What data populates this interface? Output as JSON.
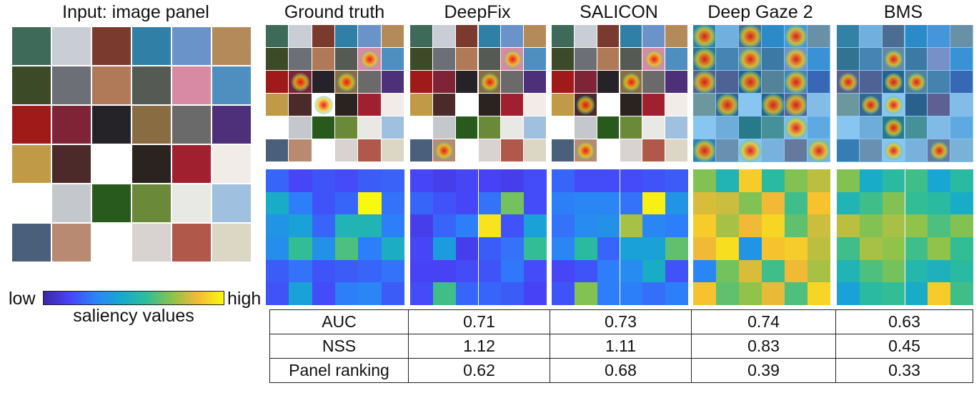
{
  "input_panel": {
    "title": "Input: image panel",
    "image_palette": [
      [
        "#3e6a5a",
        "#c9ced6",
        "#7a3a2e",
        "#2f7fa6",
        "#6a93c9",
        "#b58a5a"
      ],
      [
        "#3c4a28",
        "#6c6f75",
        "#b07a58",
        "#555a55",
        "#d88aa4",
        "#4f8fc0"
      ],
      [
        "#a11a1a",
        "#7e2436",
        "#252328",
        "#8a6c42",
        "#6a6a6a",
        "#4d2f7a"
      ],
      [
        "#c19a48",
        "#4d2a2a",
        "#ffffff",
        "#2b2320",
        "#a02030",
        "#f2ece8"
      ],
      [
        "#ffffff",
        "#c4c8cc",
        "#285a1e",
        "#6a8a3a",
        "#e8e8e4",
        "#9fc0de"
      ],
      [
        "#4a607a",
        "#b88a72",
        "#ffffff",
        "#d8d2d0",
        "#b0584a",
        "#dcd6c4"
      ]
    ]
  },
  "columns": [
    {
      "title": "Ground truth"
    },
    {
      "title": "DeepFix"
    },
    {
      "title": "SALICON"
    },
    {
      "title": "Deep Gaze 2"
    },
    {
      "title": "BMS"
    }
  ],
  "colorbar": {
    "low_label": "low",
    "high_label": "high",
    "caption": "saliency values",
    "colormap": [
      "#3e26a8",
      "#4743f8",
      "#2c82f9",
      "#16a9cf",
      "#2dbd9a",
      "#8bc34a",
      "#f5b935",
      "#f9f90f"
    ]
  },
  "saliency_grids": [
    {
      "method": "Ground truth",
      "values": [
        [
          0.22,
          0.15,
          0.18,
          0.16,
          0.2,
          0.21
        ],
        [
          0.45,
          0.28,
          0.18,
          0.22,
          1.0,
          0.25
        ],
        [
          0.35,
          0.4,
          0.22,
          0.5,
          0.5,
          0.28
        ],
        [
          0.33,
          0.58,
          0.34,
          0.62,
          0.28,
          0.46
        ],
        [
          0.2,
          0.25,
          0.18,
          0.2,
          0.22,
          0.25
        ],
        [
          0.18,
          0.4,
          0.16,
          0.28,
          0.3,
          0.2
        ]
      ]
    },
    {
      "method": "DeepFix",
      "values": [
        [
          0.15,
          0.12,
          0.15,
          0.14,
          0.12,
          0.16
        ],
        [
          0.22,
          0.18,
          0.15,
          0.25,
          0.68,
          0.16
        ],
        [
          0.12,
          0.22,
          0.28,
          0.95,
          0.18,
          0.4
        ],
        [
          0.15,
          0.38,
          0.12,
          0.2,
          0.25,
          0.58
        ],
        [
          0.14,
          0.14,
          0.16,
          0.18,
          0.26,
          0.16
        ],
        [
          0.16,
          0.6,
          0.22,
          0.22,
          0.2,
          0.14
        ]
      ]
    },
    {
      "method": "SALICON",
      "values": [
        [
          0.22,
          0.16,
          0.16,
          0.16,
          0.18,
          0.2
        ],
        [
          0.28,
          0.3,
          0.3,
          0.25,
          0.98,
          0.35
        ],
        [
          0.25,
          0.32,
          0.34,
          0.75,
          0.3,
          0.28
        ],
        [
          0.3,
          0.55,
          0.22,
          0.4,
          0.4,
          0.65
        ],
        [
          0.15,
          0.18,
          0.28,
          0.32,
          0.45,
          0.18
        ],
        [
          0.18,
          0.7,
          0.28,
          0.28,
          0.24,
          0.28
        ]
      ]
    },
    {
      "method": "Deep Gaze 2",
      "values": [
        [
          0.7,
          0.5,
          0.9,
          0.55,
          0.7,
          0.78
        ],
        [
          0.82,
          0.8,
          0.7,
          0.85,
          0.6,
          0.88
        ],
        [
          0.9,
          0.75,
          0.85,
          0.92,
          0.65,
          0.8
        ],
        [
          0.85,
          0.94,
          0.35,
          0.88,
          0.9,
          0.78
        ],
        [
          0.3,
          0.68,
          0.82,
          0.6,
          0.85,
          0.75
        ],
        [
          0.88,
          0.65,
          0.72,
          0.84,
          0.62,
          0.92
        ]
      ]
    },
    {
      "method": "BMS",
      "values": [
        [
          0.7,
          0.45,
          0.55,
          0.6,
          0.42,
          0.55
        ],
        [
          0.5,
          0.6,
          0.7,
          0.58,
          0.55,
          0.45
        ],
        [
          0.78,
          0.7,
          0.75,
          0.72,
          0.62,
          0.7
        ],
        [
          0.6,
          0.75,
          0.72,
          0.6,
          0.72,
          0.58
        ],
        [
          0.5,
          0.62,
          0.68,
          0.52,
          0.48,
          0.55
        ],
        [
          0.4,
          0.55,
          0.58,
          0.45,
          0.9,
          0.6
        ]
      ]
    }
  ],
  "overlay_hotspots": [
    [
      [
        1,
        4
      ],
      [
        2,
        1
      ],
      [
        3,
        2
      ],
      [
        2,
        3
      ]
    ],
    [
      [
        2,
        3
      ],
      [
        1,
        4
      ],
      [
        5,
        1
      ]
    ],
    [
      [
        1,
        4
      ],
      [
        2,
        3
      ],
      [
        3,
        1
      ],
      [
        5,
        1
      ]
    ],
    [
      [
        0,
        0
      ],
      [
        0,
        2
      ],
      [
        0,
        4
      ],
      [
        1,
        0
      ],
      [
        1,
        2
      ],
      [
        1,
        4
      ],
      [
        2,
        0
      ],
      [
        2,
        2
      ],
      [
        2,
        4
      ],
      [
        3,
        1
      ],
      [
        3,
        3
      ],
      [
        3,
        4
      ],
      [
        4,
        4
      ],
      [
        5,
        0
      ],
      [
        5,
        2
      ],
      [
        5,
        5
      ]
    ],
    [
      [
        1,
        2
      ],
      [
        2,
        0
      ],
      [
        2,
        2
      ],
      [
        2,
        3
      ],
      [
        3,
        1
      ],
      [
        3,
        2
      ],
      [
        4,
        2
      ],
      [
        5,
        4
      ],
      [
        5,
        2
      ]
    ]
  ],
  "metrics": {
    "rows": [
      {
        "label": "AUC",
        "values": [
          "0.71",
          "0.73",
          "0.74",
          "0.63"
        ]
      },
      {
        "label": "NSS",
        "values": [
          "1.12",
          "1.11",
          "0.83",
          "0.45"
        ]
      },
      {
        "label": "Panel ranking",
        "values": [
          "0.62",
          "0.68",
          "0.39",
          "0.33"
        ]
      }
    ]
  }
}
